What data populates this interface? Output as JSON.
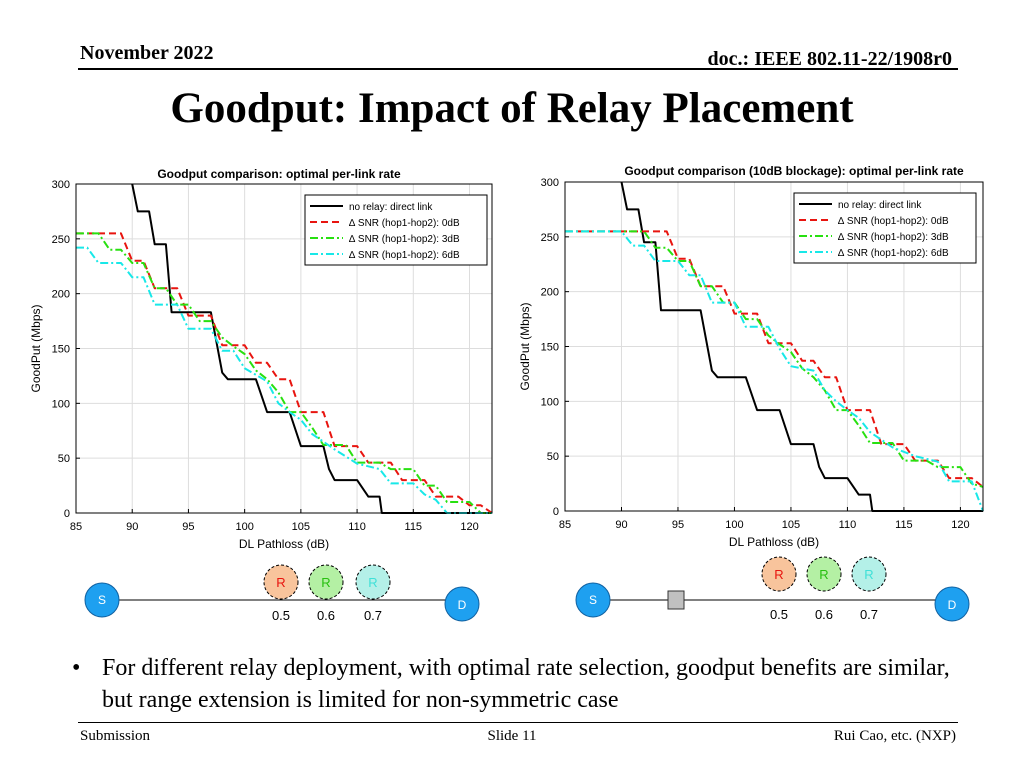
{
  "header": {
    "date": "November 2022",
    "doc": "doc.: IEEE 802.11-22/1908r0",
    "title": "Goodput: Impact of Relay Placement"
  },
  "bullet": "For different relay deployment, with optimal rate selection, goodput benefits are similar, but range extension is limited for non-symmetric case",
  "footer": {
    "left": "Submission",
    "center": "Slide 11",
    "right": "Rui Cao, etc. (NXP)"
  },
  "colors": {
    "direct": "#000000",
    "snr0": "#e8140f",
    "snr3": "#28e010",
    "snr6": "#18e8e8"
  },
  "chart_data": [
    {
      "type": "line",
      "title": "Goodput comparison: optimal per-link rate",
      "xlabel": "DL Pathloss (dB)",
      "ylabel": "GoodPut (Mbps)",
      "xlim": [
        85,
        122
      ],
      "ylim": [
        0,
        300
      ],
      "xticks": [
        85,
        90,
        95,
        100,
        105,
        110,
        115,
        120
      ],
      "yticks": [
        0,
        50,
        100,
        150,
        200,
        250,
        300
      ],
      "grid": true,
      "legend": "top-right",
      "series": [
        {
          "name": "no relay: direct link",
          "color": "#000000",
          "dash": "solid",
          "points": [
            [
              90,
              300
            ],
            [
              90.5,
              275
            ],
            [
              91.5,
              275
            ],
            [
              92,
              245
            ],
            [
              93,
              245
            ],
            [
              93.5,
              183
            ],
            [
              97,
              183
            ],
            [
              98,
              128
            ],
            [
              98.5,
              122
            ],
            [
              101,
              122
            ],
            [
              102,
              92
            ],
            [
              104,
              92
            ],
            [
              105,
              61
            ],
            [
              107,
              61
            ],
            [
              107.5,
              40
            ],
            [
              108,
              30
            ],
            [
              110,
              30
            ],
            [
              111,
              15
            ],
            [
              112,
              15
            ],
            [
              112.2,
              0
            ],
            [
              122,
              0
            ]
          ]
        },
        {
          "name": "∆ SNR (hop1-hop2): 0dB",
          "color": "#e8140f",
          "dash": "dash",
          "points": [
            [
              85,
              255
            ],
            [
              89,
              255
            ],
            [
              90,
              230
            ],
            [
              91,
              230
            ],
            [
              92,
              205
            ],
            [
              94,
              205
            ],
            [
              95,
              180
            ],
            [
              97,
              180
            ],
            [
              98,
              153
            ],
            [
              100,
              153
            ],
            [
              101,
              137
            ],
            [
              102,
              137
            ],
            [
              103,
              122
            ],
            [
              104,
              122
            ],
            [
              105,
              92
            ],
            [
              107,
              92
            ],
            [
              108,
              61
            ],
            [
              110,
              61
            ],
            [
              111,
              46
            ],
            [
              113,
              46
            ],
            [
              114,
              30
            ],
            [
              116,
              30
            ],
            [
              117,
              15
            ],
            [
              119,
              15
            ],
            [
              120,
              7
            ],
            [
              121,
              7
            ],
            [
              122,
              0
            ]
          ]
        },
        {
          "name": "∆ SNR (hop1-hop2): 3dB",
          "color": "#28e010",
          "dash": "dashdot",
          "points": [
            [
              85,
              255
            ],
            [
              87,
              255
            ],
            [
              88,
              240
            ],
            [
              89,
              240
            ],
            [
              90,
              228
            ],
            [
              91,
              228
            ],
            [
              92,
              205
            ],
            [
              93,
              205
            ],
            [
              94,
              190
            ],
            [
              95,
              190
            ],
            [
              96,
              175
            ],
            [
              97,
              175
            ],
            [
              98,
              160
            ],
            [
              99,
              152
            ],
            [
              100,
              145
            ],
            [
              101,
              130
            ],
            [
              102,
              122
            ],
            [
              103,
              110
            ],
            [
              104,
              92
            ],
            [
              105,
              92
            ],
            [
              106,
              78
            ],
            [
              107,
              62
            ],
            [
              109,
              62
            ],
            [
              110,
              46
            ],
            [
              112,
              46
            ],
            [
              113,
              40
            ],
            [
              115,
              40
            ],
            [
              116,
              25
            ],
            [
              117,
              25
            ],
            [
              118,
              10
            ],
            [
              120,
              10
            ],
            [
              121,
              0
            ],
            [
              122,
              0
            ]
          ]
        },
        {
          "name": "∆ SNR (hop1-hop2): 6dB",
          "color": "#18e8e8",
          "dash": "dashdot",
          "points": [
            [
              85,
              242
            ],
            [
              86,
              242
            ],
            [
              87,
              228
            ],
            [
              89,
              228
            ],
            [
              90,
              215
            ],
            [
              91,
              215
            ],
            [
              92,
              190
            ],
            [
              94,
              190
            ],
            [
              95,
              168
            ],
            [
              97,
              168
            ],
            [
              98,
              148
            ],
            [
              99,
              148
            ],
            [
              100,
              132
            ],
            [
              102,
              120
            ],
            [
              103,
              100
            ],
            [
              104,
              92
            ],
            [
              105,
              85
            ],
            [
              106,
              72
            ],
            [
              108,
              58
            ],
            [
              110,
              45
            ],
            [
              112,
              40
            ],
            [
              113,
              27
            ],
            [
              115,
              27
            ],
            [
              116,
              17
            ],
            [
              117,
              12
            ],
            [
              118,
              0
            ],
            [
              122,
              0
            ]
          ]
        }
      ],
      "topology": {
        "source": "S",
        "dest": "D",
        "relay_label": "R",
        "relay_positions": [
          "0.5",
          "0.6",
          "0.7"
        ],
        "blockage": false
      }
    },
    {
      "type": "line",
      "title": "Goodput comparison (10dB blockage): optimal per-link rate",
      "xlabel": "DL Pathloss (dB)",
      "ylabel": "GoodPut (Mbps)",
      "xlim": [
        85,
        122
      ],
      "ylim": [
        0,
        300
      ],
      "xticks": [
        85,
        90,
        95,
        100,
        105,
        110,
        115,
        120
      ],
      "yticks": [
        0,
        50,
        100,
        150,
        200,
        250,
        300
      ],
      "grid": true,
      "legend": "top-right",
      "series": [
        {
          "name": "no relay: direct link",
          "color": "#000000",
          "dash": "solid",
          "points": [
            [
              90,
              300
            ],
            [
              90.5,
              275
            ],
            [
              91.5,
              275
            ],
            [
              92,
              245
            ],
            [
              93,
              245
            ],
            [
              93.5,
              183
            ],
            [
              97,
              183
            ],
            [
              98,
              128
            ],
            [
              98.5,
              122
            ],
            [
              101,
              122
            ],
            [
              102,
              92
            ],
            [
              104,
              92
            ],
            [
              105,
              61
            ],
            [
              107,
              61
            ],
            [
              107.5,
              40
            ],
            [
              108,
              30
            ],
            [
              110,
              30
            ],
            [
              111,
              15
            ],
            [
              112,
              15
            ],
            [
              112.2,
              0
            ],
            [
              122,
              0
            ]
          ]
        },
        {
          "name": "∆ SNR (hop1-hop2): 0dB",
          "color": "#e8140f",
          "dash": "dash",
          "points": [
            [
              85,
              255
            ],
            [
              94,
              255
            ],
            [
              95,
              230
            ],
            [
              96,
              230
            ],
            [
              97,
              205
            ],
            [
              99,
              205
            ],
            [
              100,
              180
            ],
            [
              102,
              180
            ],
            [
              103,
              153
            ],
            [
              105,
              153
            ],
            [
              106,
              137
            ],
            [
              107,
              137
            ],
            [
              108,
              122
            ],
            [
              109,
              122
            ],
            [
              110,
              92
            ],
            [
              112,
              92
            ],
            [
              113,
              61
            ],
            [
              115,
              61
            ],
            [
              116,
              46
            ],
            [
              118,
              46
            ],
            [
              119,
              30
            ],
            [
              121,
              30
            ],
            [
              122,
              22
            ]
          ]
        },
        {
          "name": "∆ SNR (hop1-hop2): 3dB",
          "color": "#28e010",
          "dash": "dashdot",
          "points": [
            [
              85,
              255
            ],
            [
              92,
              255
            ],
            [
              93,
              240
            ],
            [
              94,
              240
            ],
            [
              95,
              228
            ],
            [
              96,
              228
            ],
            [
              97,
              205
            ],
            [
              98,
              205
            ],
            [
              99,
              190
            ],
            [
              100,
              190
            ],
            [
              101,
              175
            ],
            [
              102,
              175
            ],
            [
              103,
              160
            ],
            [
              104,
              152
            ],
            [
              105,
              145
            ],
            [
              106,
              130
            ],
            [
              107,
              122
            ],
            [
              108,
              110
            ],
            [
              109,
              92
            ],
            [
              110,
              92
            ],
            [
              111,
              78
            ],
            [
              112,
              62
            ],
            [
              114,
              62
            ],
            [
              115,
              46
            ],
            [
              117,
              46
            ],
            [
              118,
              40
            ],
            [
              120,
              40
            ],
            [
              121,
              25
            ],
            [
              122,
              22
            ]
          ]
        },
        {
          "name": "∆ SNR (hop1-hop2): 6dB",
          "color": "#18e8e8",
          "dash": "dashdot",
          "points": [
            [
              85,
              255
            ],
            [
              90,
              255
            ],
            [
              91,
              242
            ],
            [
              92,
              242
            ],
            [
              93,
              228
            ],
            [
              95,
              228
            ],
            [
              96,
              215
            ],
            [
              97,
              215
            ],
            [
              98,
              190
            ],
            [
              100,
              190
            ],
            [
              101,
              168
            ],
            [
              103,
              168
            ],
            [
              104,
              148
            ],
            [
              105,
              132
            ],
            [
              107,
              128
            ],
            [
              108,
              110
            ],
            [
              109,
              100
            ],
            [
              110,
              92
            ],
            [
              111,
              85
            ],
            [
              112,
              72
            ],
            [
              114,
              58
            ],
            [
              116,
              50
            ],
            [
              118,
              45
            ],
            [
              119,
              27
            ],
            [
              121,
              27
            ],
            [
              122,
              0
            ]
          ]
        }
      ],
      "topology": {
        "source": "S",
        "dest": "D",
        "relay_label": "R",
        "relay_positions": [
          "0.5",
          "0.6",
          "0.7"
        ],
        "blockage": true
      }
    }
  ]
}
